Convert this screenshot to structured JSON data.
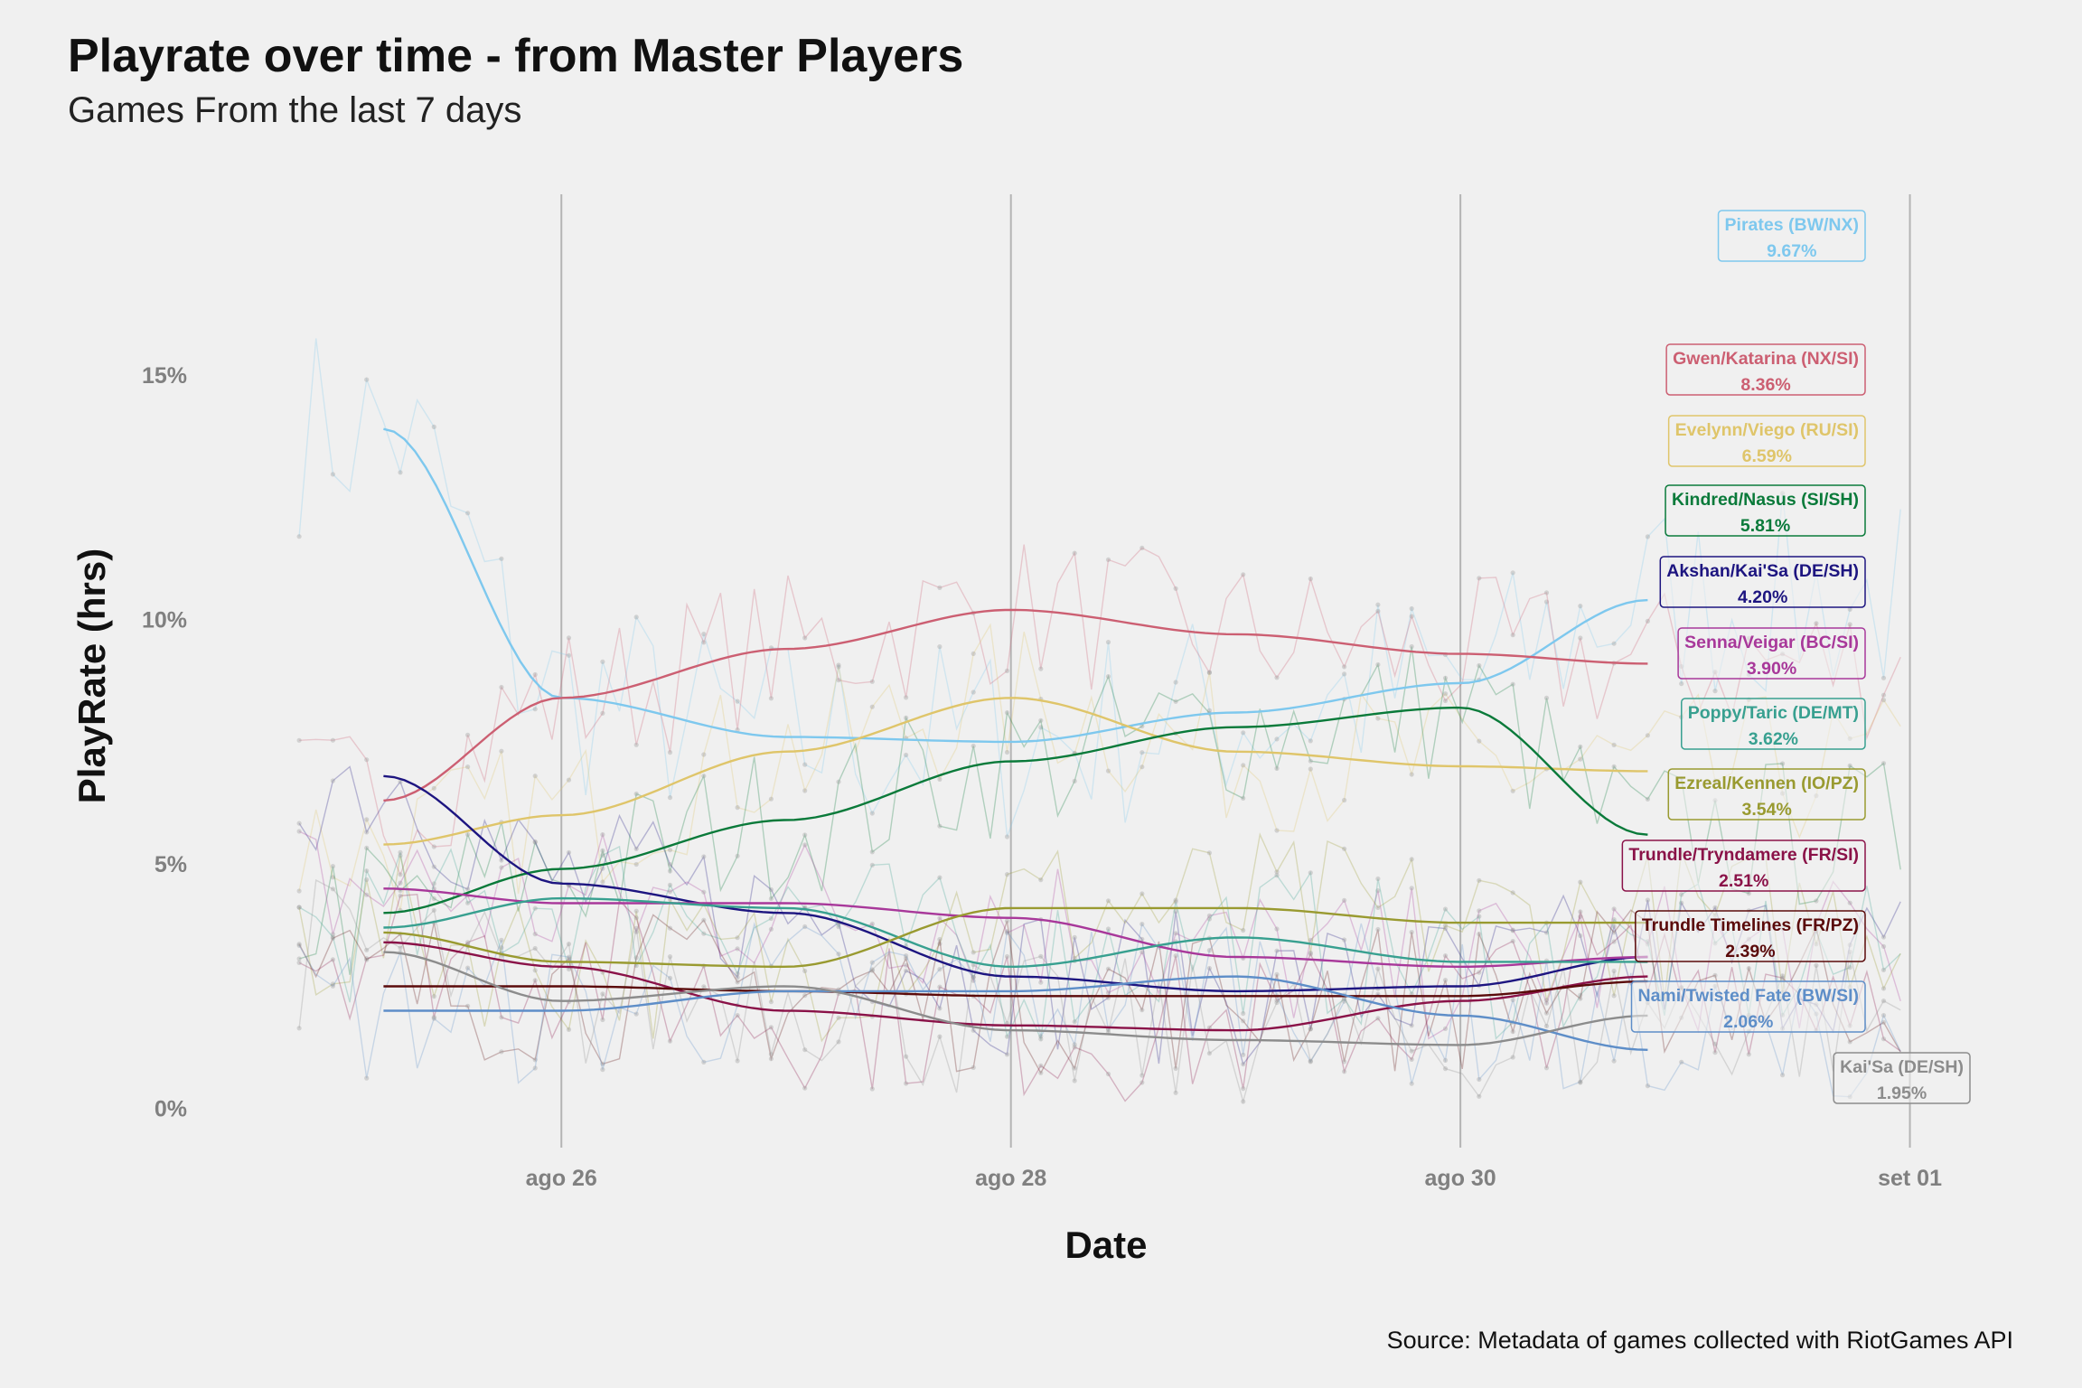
{
  "title": "Playrate over time - from Master Players",
  "subtitle": "Games From the last 7 days",
  "caption": "Source: Metadata of games collected with RiotGames API",
  "chart_data": {
    "type": "line",
    "title": "Playrate over time - from Master Players",
    "subtitle": "Games From the last 7 days",
    "xlabel": "Date",
    "ylabel": "PlayRate (hrs)",
    "x_ticks": [
      "ago 26",
      "ago 28",
      "ago 30",
      "set 01"
    ],
    "x_tick_dates": [
      "2021-08-26",
      "2021-08-28",
      "2021-08-30",
      "2021-09-01"
    ],
    "y_ticks": [
      "0%",
      "5%",
      "10%",
      "15%"
    ],
    "y_tick_values": [
      0,
      5,
      10,
      15
    ],
    "xlim": [
      "2021-08-24T17:00",
      "2021-09-01T04:00"
    ],
    "ylim": [
      -0.8,
      18.7
    ],
    "grid": "vertical major lines only",
    "legend": "direct labels at right end of lines",
    "x": [
      "2021-08-25T05:00",
      "2021-08-26T00:00",
      "2021-08-27T00:00",
      "2021-08-28T00:00",
      "2021-08-29T00:00",
      "2021-08-30T00:00",
      "2021-08-30T20:00"
    ],
    "series": [
      {
        "name": "Pirates (BW/NX)",
        "label": "9.67%",
        "color": "#7ec8ee",
        "values": [
          13.9,
          8.4,
          7.6,
          7.5,
          8.1,
          8.7,
          10.4
        ]
      },
      {
        "name": "Gwen/Katarina (NX/SI)",
        "label": "8.36%",
        "color": "#cc5f72",
        "values": [
          6.3,
          8.4,
          9.4,
          10.2,
          9.7,
          9.3,
          9.1
        ]
      },
      {
        "name": "Evelynn/Viego (RU/SI)",
        "label": "6.59%",
        "color": "#dfc56a",
        "values": [
          5.4,
          6.0,
          7.3,
          8.4,
          7.3,
          7.0,
          6.9
        ]
      },
      {
        "name": "Kindred/Nasus (SI/SH)",
        "label": "5.81%",
        "color": "#0a7a3a",
        "values": [
          4.0,
          4.9,
          5.9,
          7.1,
          7.8,
          8.2,
          5.6
        ]
      },
      {
        "name": "Akshan/Kai'Sa (DE/SH)",
        "label": "4.20%",
        "color": "#1d1580",
        "values": [
          6.8,
          4.6,
          4.0,
          2.7,
          2.4,
          2.5,
          3.1
        ]
      },
      {
        "name": "Senna/Veigar (BC/SI)",
        "label": "3.90%",
        "color": "#a8389a",
        "values": [
          4.5,
          4.2,
          4.2,
          3.9,
          3.1,
          2.9,
          3.1
        ]
      },
      {
        "name": "Poppy/Taric (DE/MT)",
        "label": "3.62%",
        "color": "#38a090",
        "values": [
          3.7,
          4.3,
          4.1,
          2.9,
          3.5,
          3.0,
          3.0
        ]
      },
      {
        "name": "Ezreal/Kennen (IO/PZ)",
        "label": "3.54%",
        "color": "#999a30",
        "values": [
          3.6,
          3.0,
          2.9,
          4.1,
          4.1,
          3.8,
          3.8
        ]
      },
      {
        "name": "Trundle/Tryndamere (FR/SI)",
        "label": "2.51%",
        "color": "#8a1248",
        "values": [
          3.4,
          2.9,
          2.0,
          1.7,
          1.6,
          2.2,
          2.7
        ]
      },
      {
        "name": "Trundle Timelines (FR/PZ)",
        "label": "2.39%",
        "color": "#5a0a0a",
        "values": [
          2.5,
          2.5,
          2.4,
          2.3,
          2.3,
          2.3,
          2.6
        ]
      },
      {
        "name": "Nami/Twisted Fate (BW/SI)",
        "label": "2.06%",
        "color": "#5e8ec8",
        "values": [
          2.0,
          2.0,
          2.4,
          2.4,
          2.7,
          1.9,
          1.2
        ]
      },
      {
        "name": "Kai'Sa (DE/SH)",
        "label": "1.95%",
        "color": "#8c8c8c",
        "values": [
          3.2,
          2.2,
          2.5,
          1.6,
          1.4,
          1.3,
          1.9
        ]
      }
    ]
  }
}
